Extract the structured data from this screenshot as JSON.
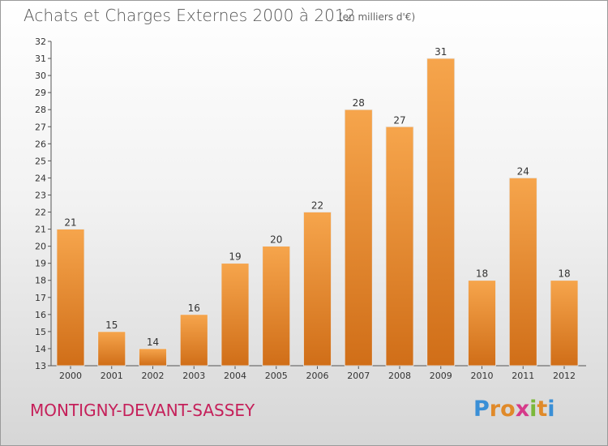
{
  "header": {
    "title": "Achats et Charges Externes 2000 à 2012",
    "unit": "(en milliers d'€)"
  },
  "footer": {
    "commune": "MONTIGNY-DEVANT-SASSEY",
    "logo_letters": [
      "P",
      "r",
      "o",
      "x",
      "i",
      "t",
      "i"
    ],
    "logo_colors": [
      "#3a8fd6",
      "#e08a2a",
      "#e08a2a",
      "#d63a8a",
      "#7ab83a",
      "#e08a2a",
      "#3a8fd6"
    ]
  },
  "colors": {
    "bar_top": "#f6a54c",
    "bar_bottom": "#d06e18",
    "commune": "#c5205a"
  },
  "chart_data": {
    "type": "bar",
    "title": "Achats et Charges Externes 2000 à 2012",
    "subtitle": "(en milliers d'€)",
    "xlabel": "",
    "ylabel": "",
    "ylim": [
      13,
      32
    ],
    "yticks": [
      13,
      14,
      15,
      16,
      17,
      18,
      19,
      20,
      21,
      22,
      23,
      24,
      25,
      26,
      27,
      28,
      29,
      30,
      31,
      32
    ],
    "grid": false,
    "categories": [
      "2000",
      "2001",
      "2002",
      "2003",
      "2004",
      "2005",
      "2006",
      "2007",
      "2008",
      "2009",
      "2010",
      "2011",
      "2012"
    ],
    "values": [
      21,
      15,
      14,
      16,
      19,
      20,
      22,
      28,
      27,
      31,
      18,
      24,
      18
    ]
  }
}
